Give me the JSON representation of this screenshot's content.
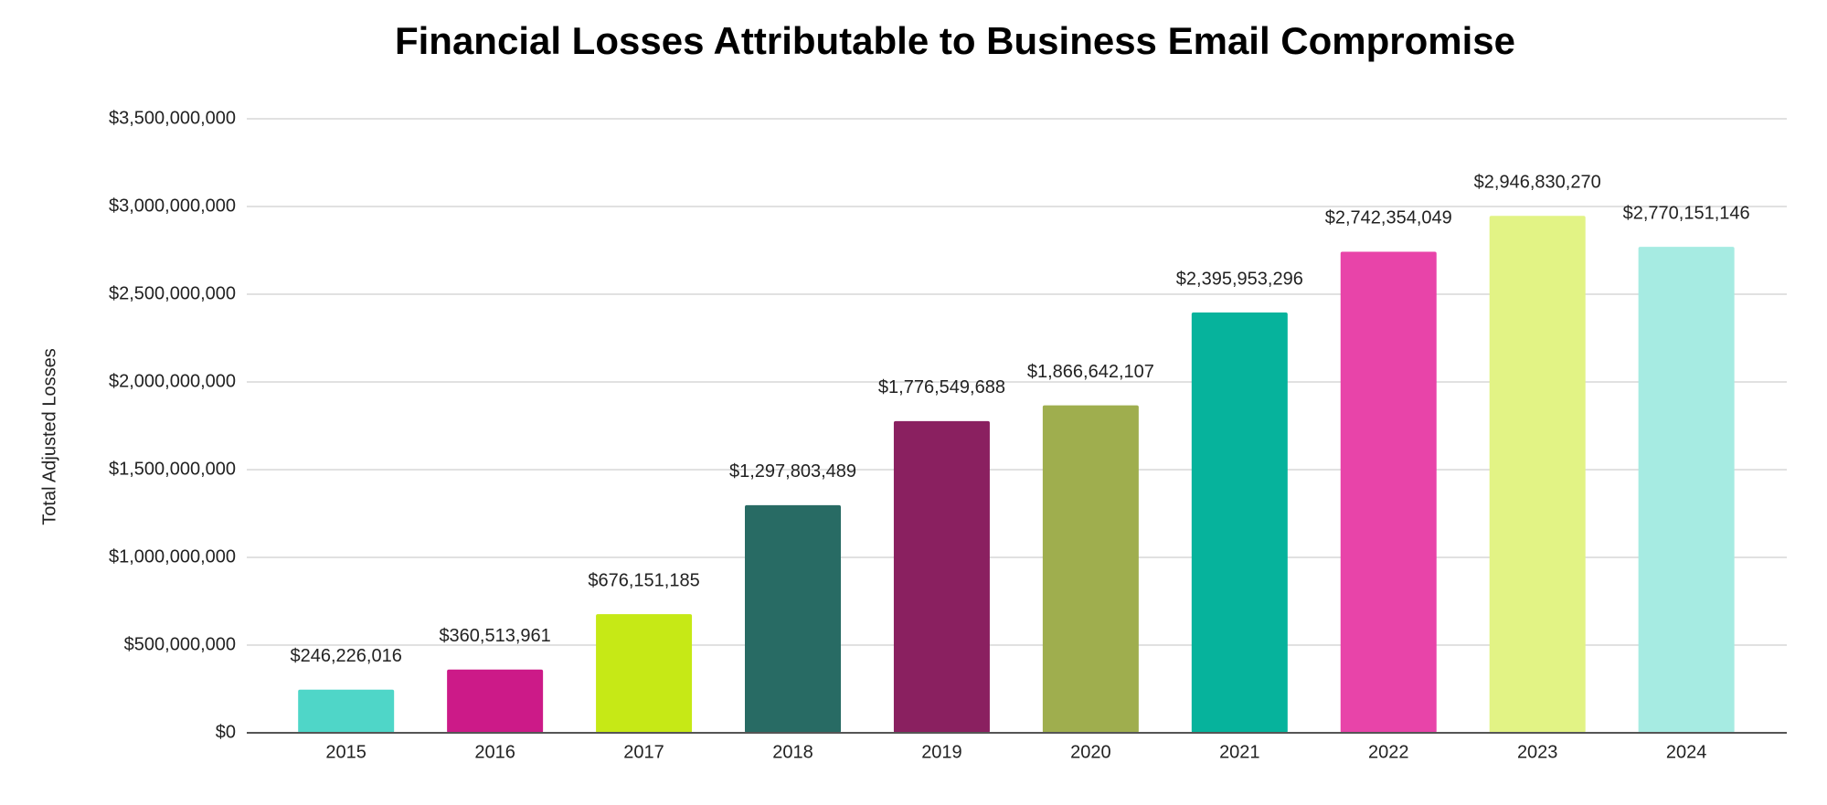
{
  "chart_data": {
    "type": "bar",
    "title": "Financial Losses Attributable to Business Email Compromise",
    "y_label": "Total Adjusted Losses",
    "categories": [
      "2015",
      "2016",
      "2017",
      "2018",
      "2019",
      "2020",
      "2021",
      "2022",
      "2023",
      "2024"
    ],
    "values": [
      246226016,
      360513961,
      676151185,
      1297803489,
      1776549688,
      1866642107,
      2395953296,
      2742354049,
      2946830270,
      2770151146
    ],
    "value_labels": [
      "$246,226,016",
      "$360,513,961",
      "$676,151,185",
      "$1,297,803,489",
      "$1,776,549,688",
      "$1,866,642,107",
      "$2,395,953,296",
      "$2,742,354,049",
      "$2,946,830,270",
      "$2,770,151,146"
    ],
    "colors": [
      "#4fd6c8",
      "#cc1a88",
      "#c6e916",
      "#286b64",
      "#8a2060",
      "#9fae4e",
      "#06b39c",
      "#e844a9",
      "#e2f385",
      "#a6ebe2"
    ],
    "ylim": [
      0,
      3500000000
    ],
    "yticks": [
      {
        "value": 0,
        "label": "$0"
      },
      {
        "value": 500000000,
        "label": "$500,000,000"
      },
      {
        "value": 1000000000,
        "label": "$1,000,000,000"
      },
      {
        "value": 1500000000,
        "label": "$1,500,000,000"
      },
      {
        "value": 2000000000,
        "label": "$2,000,000,000"
      },
      {
        "value": 2500000000,
        "label": "$2,500,000,000"
      },
      {
        "value": 3000000000,
        "label": "$3,000,000,000"
      },
      {
        "value": 3500000000,
        "label": "$3,500,000,000"
      }
    ],
    "grid": true
  }
}
